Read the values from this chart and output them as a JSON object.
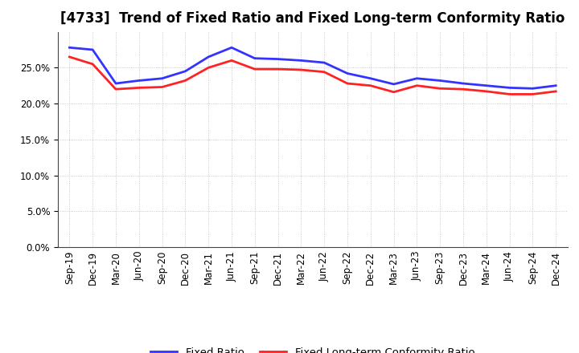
{
  "title": "[4733]  Trend of Fixed Ratio and Fixed Long-term Conformity Ratio",
  "x_labels": [
    "Sep-19",
    "Dec-19",
    "Mar-20",
    "Jun-20",
    "Sep-20",
    "Dec-20",
    "Mar-21",
    "Jun-21",
    "Sep-21",
    "Dec-21",
    "Mar-22",
    "Jun-22",
    "Sep-22",
    "Dec-22",
    "Mar-23",
    "Jun-23",
    "Sep-23",
    "Dec-23",
    "Mar-24",
    "Jun-24",
    "Sep-24",
    "Dec-24"
  ],
  "fixed_ratio": [
    27.8,
    27.5,
    22.8,
    23.2,
    23.5,
    24.5,
    26.5,
    27.8,
    26.3,
    26.2,
    26.0,
    25.7,
    24.2,
    23.5,
    22.7,
    23.5,
    23.2,
    22.8,
    22.5,
    22.2,
    22.1,
    22.5
  ],
  "fixed_lt_ratio": [
    26.5,
    25.5,
    22.0,
    22.2,
    22.3,
    23.2,
    25.0,
    26.0,
    24.8,
    24.8,
    24.7,
    24.4,
    22.8,
    22.5,
    21.6,
    22.5,
    22.1,
    22.0,
    21.7,
    21.3,
    21.3,
    21.7
  ],
  "ylim": [
    0,
    30
  ],
  "yticks": [
    0.0,
    5.0,
    10.0,
    15.0,
    20.0,
    25.0
  ],
  "line_color_fixed": "#3333FF",
  "line_color_lt": "#FF2222",
  "background_color": "#FFFFFF",
  "grid_color": "#BBBBBB",
  "legend_fixed": "Fixed Ratio",
  "legend_lt": "Fixed Long-term Conformity Ratio",
  "title_fontsize": 12,
  "tick_fontsize": 8.5,
  "legend_fontsize": 9.5,
  "line_width": 2.0
}
